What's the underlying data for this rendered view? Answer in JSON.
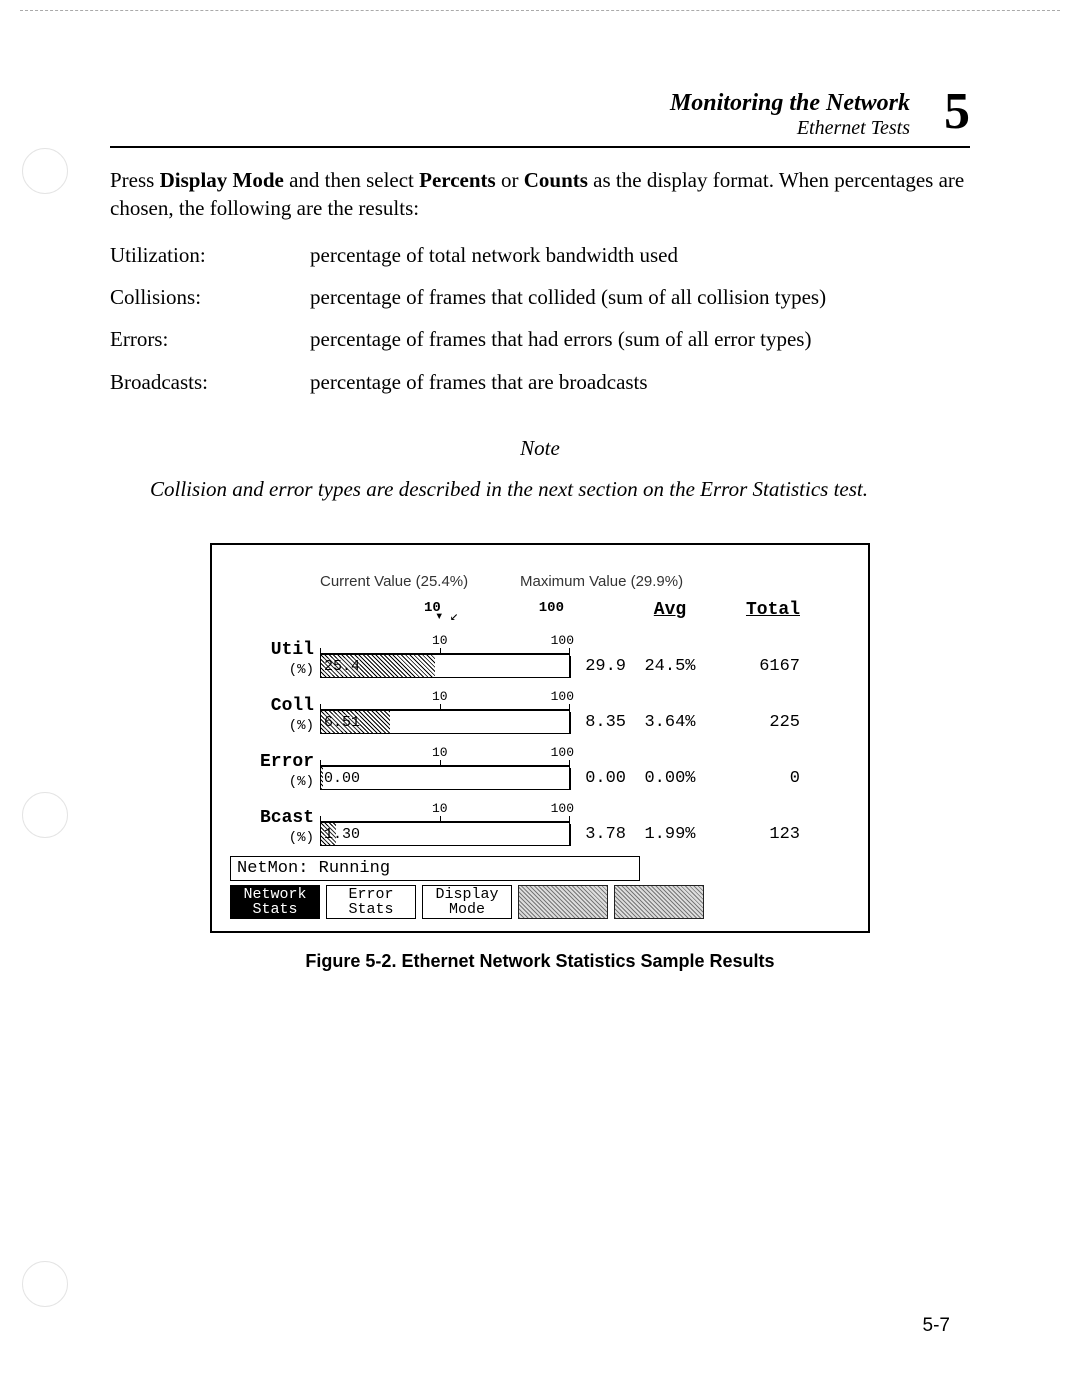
{
  "header": {
    "title": "Monitoring the Network",
    "subtitle": "Ethernet Tests",
    "chapter": "5"
  },
  "intro": {
    "pre": "Press ",
    "b1": "Display Mode",
    "mid1": " and then select ",
    "b2": "Percents",
    "mid2": " or ",
    "b3": "Counts",
    "post": " as the display format.  When percentages are chosen, the following are the results:"
  },
  "definitions": [
    {
      "term": "Utilization:",
      "desc": "percentage of total network bandwidth used"
    },
    {
      "term": "Collisions:",
      "desc": "percentage of frames that collided (sum of all collision types)"
    },
    {
      "term": "Errors:",
      "desc": "percentage of frames that had errors (sum of all error types)"
    },
    {
      "term": "Broadcasts:",
      "desc": "percentage of frames that are broadcasts"
    }
  ],
  "note": {
    "heading": "Note",
    "body": "Collision and error types are described in the next section on the Error Statistics test."
  },
  "figure": {
    "callout_current": "Current Value (25.4%)",
    "callout_max": "Maximum Value (29.9%)",
    "scale_mid": "10",
    "scale_end": "100",
    "col_avg": "Avg",
    "col_total": "Total",
    "rows": [
      {
        "label": "Util",
        "unit": "(%)",
        "bar_value": "25.4",
        "bar_pct": 46,
        "max": "29.9",
        "max_mark_pct": 52,
        "avg": "24.5%",
        "total": "6167",
        "show_arrows": true
      },
      {
        "label": "Coll",
        "unit": "(%)",
        "bar_value": "6.51",
        "bar_pct": 28,
        "max": "8.35",
        "max_mark_pct": 0,
        "avg": "3.64%",
        "total": "225",
        "show_arrows": false
      },
      {
        "label": "Error",
        "unit": "(%)",
        "bar_value": "0.00",
        "bar_pct": 1,
        "max": "0.00",
        "max_mark_pct": 0,
        "avg": "0.00%",
        "total": "0",
        "show_arrows": false
      },
      {
        "label": "Bcast",
        "unit": "(%)",
        "bar_value": "1.30",
        "bar_pct": 6,
        "max": "3.78",
        "max_mark_pct": 0,
        "avg": "1.99%",
        "total": "123",
        "show_arrows": false
      }
    ],
    "status": "NetMon: Running",
    "softkeys": [
      {
        "line1": "Network",
        "line2": "Stats",
        "active": true,
        "blank": false
      },
      {
        "line1": "Error",
        "line2": "Stats",
        "active": false,
        "blank": false
      },
      {
        "line1": "Display",
        "line2": "Mode",
        "active": false,
        "blank": false
      },
      {
        "line1": "",
        "line2": "",
        "active": false,
        "blank": true
      },
      {
        "line1": "",
        "line2": "",
        "active": false,
        "blank": true
      }
    ],
    "caption": "Figure 5-2.  Ethernet Network Statistics Sample Results"
  },
  "page_number": "5-7",
  "colors": {
    "text": "#000000",
    "bg": "#ffffff",
    "hatch_dark": "#000000",
    "hatch_light": "#ffffff"
  }
}
